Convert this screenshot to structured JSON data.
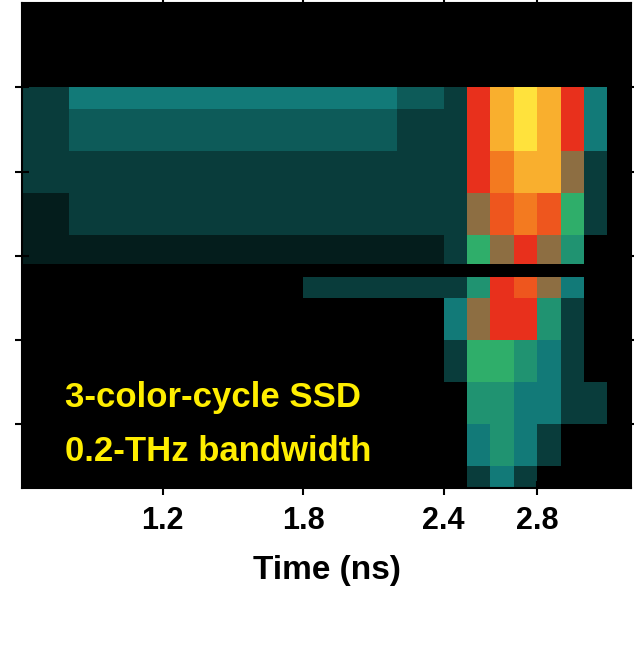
{
  "chart_data": {
    "type": "heatmap",
    "xlabel": "Time (ns)",
    "annotations": [
      "3-color-cycle SSD",
      "0.2-THz bandwidth"
    ],
    "xlim": [
      0.6,
      3.2
    ],
    "xticks": [
      1.2,
      1.8,
      2.4,
      2.8
    ],
    "ylim": [
      0.25,
      6.0
    ],
    "yticks": [
      1,
      2,
      3,
      4,
      5
    ],
    "tick_labels": "x",
    "grid": false,
    "x_edges": [
      0.6,
      0.8,
      1.0,
      1.2,
      1.4,
      1.6,
      1.8,
      2.0,
      2.2,
      2.4,
      2.5,
      2.6,
      2.7,
      2.8,
      2.9,
      3.0,
      3.1,
      3.2
    ],
    "y_edges": [
      0.25,
      0.5,
      1.0,
      1.5,
      2.0,
      2.5,
      2.75,
      2.9,
      3.25,
      3.75,
      4.25,
      4.75,
      5.0,
      5.5,
      6.0
    ],
    "color_range": [
      0,
      10
    ],
    "cells": [
      [
        0,
        0,
        0,
        0,
        0,
        0,
        0,
        0,
        0,
        0,
        1,
        2,
        1,
        0,
        0,
        0,
        0
      ],
      [
        0,
        0,
        0,
        0,
        0,
        0,
        0,
        0,
        0,
        0,
        2,
        3,
        2,
        1,
        0,
        0,
        0
      ],
      [
        0,
        0,
        0,
        0,
        0,
        0,
        0,
        0,
        0,
        0,
        3,
        3,
        2,
        2,
        1,
        1,
        0
      ],
      [
        0,
        0,
        0,
        0,
        0,
        0,
        0,
        0,
        0,
        1,
        4,
        4,
        3,
        2,
        1,
        0,
        0
      ],
      [
        0,
        0,
        0,
        0,
        0,
        0,
        0,
        0,
        0,
        2,
        5,
        6,
        6,
        3,
        1,
        0,
        0
      ],
      [
        0,
        0,
        0,
        0,
        0,
        0,
        1,
        1,
        1,
        1,
        3,
        6,
        7,
        5,
        2,
        0,
        0
      ],
      [
        0,
        0,
        0,
        0,
        0,
        0,
        0,
        0,
        0,
        0,
        0,
        0,
        0,
        0,
        0,
        0,
        0
      ],
      [
        0.5,
        0.5,
        0.5,
        0.5,
        0.5,
        0.5,
        0.5,
        0.5,
        0.5,
        1,
        4,
        5,
        6,
        5,
        3,
        0,
        0
      ],
      [
        0.5,
        1,
        1,
        1,
        1,
        1,
        1,
        1,
        1,
        1,
        5,
        7,
        8,
        7,
        4,
        1,
        0
      ],
      [
        1,
        1,
        1,
        1,
        1,
        1,
        1,
        1,
        1,
        1,
        6,
        8,
        9,
        9,
        5,
        1,
        0
      ],
      [
        1,
        1.5,
        1.5,
        1.5,
        1.5,
        1.5,
        1.5,
        1.5,
        1,
        1,
        6,
        9,
        10,
        9,
        6,
        2,
        0
      ],
      [
        1,
        2,
        2,
        2,
        2,
        2,
        2,
        2,
        1.5,
        1,
        6,
        9,
        10,
        9,
        6,
        2,
        0
      ],
      [
        0,
        0,
        0,
        0,
        0,
        0,
        0,
        0,
        0,
        0,
        0,
        0,
        0,
        0,
        0,
        0,
        0
      ],
      [
        0,
        0,
        0,
        0,
        0,
        0,
        0,
        0,
        0,
        0,
        0,
        0,
        0,
        0,
        0,
        0,
        0
      ]
    ]
  }
}
